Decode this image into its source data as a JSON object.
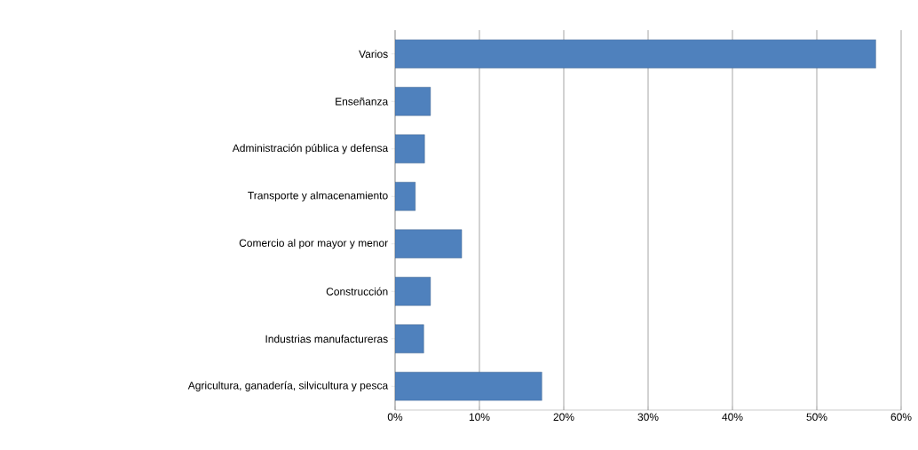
{
  "chart_data": {
    "type": "bar",
    "orientation": "horizontal",
    "categories": [
      "Varios",
      "Enseñanza",
      "Administración pública y defensa",
      "Transporte y almacenamiento",
      "Comercio al por mayor y menor",
      "Construcción",
      "Industrias manufactureras",
      "Agricultura, ganadería, silvicultura y pesca"
    ],
    "values": [
      57,
      4.2,
      3.5,
      2.4,
      7.9,
      4.2,
      3.4,
      17.4
    ],
    "color": "#4f81bd",
    "xlim": [
      0,
      60
    ],
    "xticks": [
      {
        "value": 0,
        "label": "0%"
      },
      {
        "value": 10,
        "label": "10%"
      },
      {
        "value": 20,
        "label": "20%"
      },
      {
        "value": 30,
        "label": "30%"
      },
      {
        "value": 40,
        "label": "40%"
      },
      {
        "value": 50,
        "label": "50%"
      },
      {
        "value": 60,
        "label": "60%"
      }
    ],
    "grid": "x"
  }
}
